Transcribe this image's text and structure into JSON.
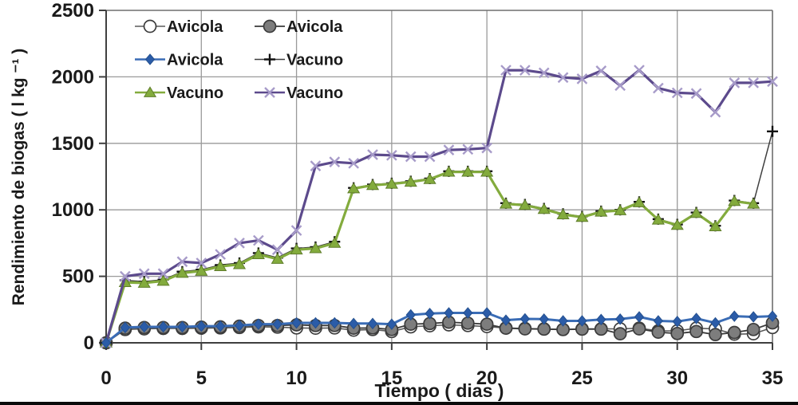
{
  "chart_data": {
    "type": "line",
    "title": "",
    "xlabel": "Tiempo ( dias )",
    "ylabel": "Rendimiento de biogas ( l kg ⁻¹ )",
    "xlim": [
      0,
      35
    ],
    "ylim": [
      0,
      2500
    ],
    "x_ticks": [
      0,
      5,
      10,
      15,
      20,
      25,
      30,
      35
    ],
    "y_ticks": [
      0,
      500,
      1000,
      1500,
      2000,
      2500
    ],
    "grid": true,
    "legend_position": "top-left-inside",
    "x": [
      0,
      1,
      2,
      3,
      4,
      5,
      6,
      7,
      8,
      9,
      10,
      11,
      12,
      13,
      14,
      15,
      16,
      17,
      18,
      19,
      20,
      21,
      22,
      23,
      24,
      25,
      26,
      27,
      28,
      29,
      30,
      31,
      32,
      33,
      34,
      35
    ],
    "series": [
      {
        "id": "avicola-open-circle",
        "name": "Avicola",
        "marker": "open-circle",
        "line_color": "#5a5a5a",
        "line_width": 1.6,
        "marker_fill": "#ffffff",
        "marker_stroke": "#3c3c3c",
        "values": [
          0,
          100,
          105,
          108,
          108,
          110,
          112,
          115,
          120,
          118,
          112,
          110,
          112,
          95,
          100,
          85,
          120,
          128,
          135,
          130,
          122,
          112,
          108,
          105,
          100,
          105,
          105,
          105,
          110,
          90,
          90,
          110,
          105,
          65,
          68,
          115
        ]
      },
      {
        "id": "avicola-filled-circle",
        "name": "Avicola",
        "marker": "filled-circle",
        "line_color": "#3a3a3a",
        "line_width": 1.8,
        "marker_fill": "#7d7d7d",
        "marker_stroke": "#3c3c3c",
        "values": [
          0,
          110,
          115,
          115,
          115,
          118,
          120,
          125,
          130,
          130,
          135,
          130,
          130,
          110,
          112,
          100,
          140,
          145,
          155,
          148,
          140,
          110,
          105,
          103,
          100,
          103,
          103,
          68,
          105,
          80,
          70,
          85,
          62,
          78,
          100,
          150
        ]
      },
      {
        "id": "avicola-blue-diamond",
        "name": "Avicola",
        "marker": "diamond",
        "line_color": "#3a6cb5",
        "line_width": 3,
        "marker_fill": "#2b5ca8",
        "marker_stroke": "#24508f",
        "values": [
          0,
          115,
          120,
          120,
          120,
          125,
          125,
          130,
          140,
          140,
          150,
          150,
          150,
          145,
          145,
          140,
          210,
          220,
          225,
          225,
          225,
          170,
          180,
          178,
          165,
          165,
          175,
          178,
          195,
          165,
          160,
          183,
          150,
          200,
          195,
          200
        ]
      },
      {
        "id": "vacuno-plus",
        "name": "Vacuno",
        "marker": "plus",
        "line_color": "#3f3f3f",
        "line_width": 1.5,
        "marker_fill": "#111111",
        "marker_stroke": "#111111",
        "values": [
          0,
          470,
          460,
          475,
          535,
          550,
          585,
          600,
          675,
          640,
          710,
          720,
          760,
          1165,
          1190,
          1200,
          1215,
          1235,
          1290,
          1290,
          1290,
          1050,
          1040,
          1010,
          970,
          950,
          990,
          1000,
          1060,
          930,
          890,
          980,
          880,
          1070,
          1050,
          1590
        ]
      },
      {
        "id": "vacuno-green-triangle",
        "name": "Vacuno",
        "marker": "triangle",
        "line_color": "#83ab3d",
        "line_width": 3.2,
        "marker_fill": "#83ab3d",
        "marker_stroke": "#5f7d2a",
        "values": [
          0,
          455,
          450,
          465,
          525,
          540,
          575,
          590,
          665,
          630,
          700,
          710,
          750,
          1160,
          1185,
          1195,
          1210,
          1230,
          1285,
          1285,
          1285,
          1045,
          1035,
          1005,
          965,
          945,
          985,
          995,
          1055,
          925,
          885,
          975,
          875,
          1065,
          1045,
          null
        ]
      },
      {
        "id": "vacuno-purple-x",
        "name": "Vacuno",
        "marker": "x",
        "line_color": "#5c4a8c",
        "line_width": 3.2,
        "marker_fill": "#a79bc9",
        "marker_stroke": "#a79bc9",
        "values": [
          0,
          500,
          520,
          520,
          610,
          600,
          665,
          750,
          770,
          700,
          845,
          1330,
          1360,
          1350,
          1415,
          1410,
          1400,
          1400,
          1450,
          1455,
          1465,
          2050,
          2050,
          2030,
          1995,
          1985,
          2045,
          1935,
          2050,
          1915,
          1880,
          1875,
          1735,
          1955,
          1955,
          1965
        ]
      }
    ],
    "colors": {
      "grid": "#9a9a9a",
      "frame": "#6e6e6e",
      "axis": "#3f3f3f",
      "text": "#1a1a1a",
      "background": "#ffffff"
    }
  }
}
